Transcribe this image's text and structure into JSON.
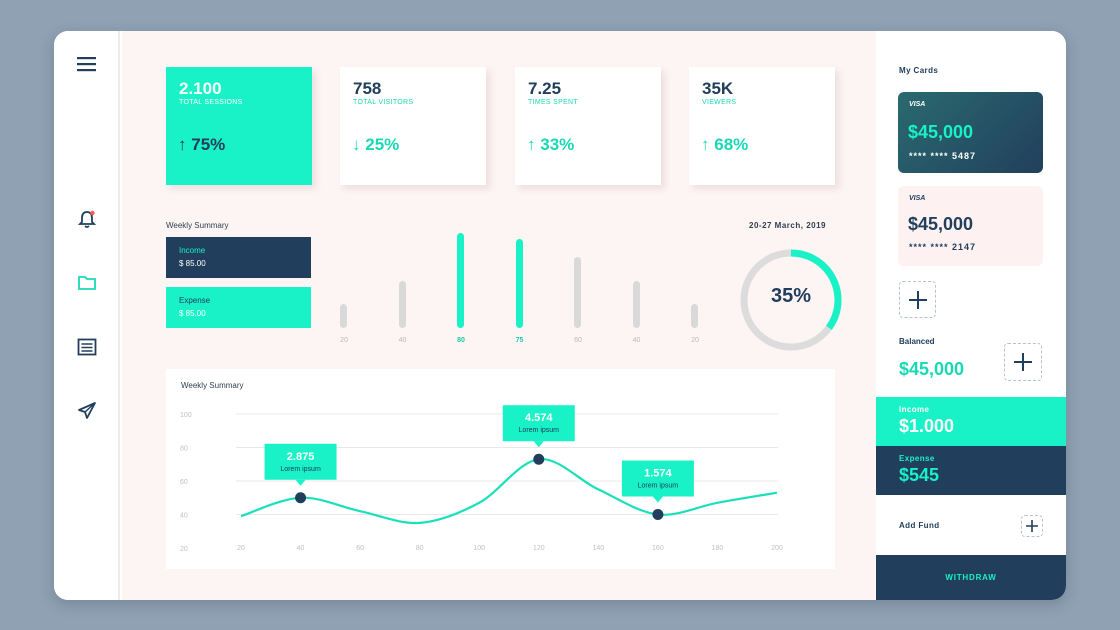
{
  "stats": [
    {
      "value": "2.100",
      "label": "TOTAL SESSIONS",
      "change": "75%",
      "arrow": "↑"
    },
    {
      "value": "758",
      "label": "TOTAL VISITORS",
      "change": "25%",
      "arrow": "↓"
    },
    {
      "value": "7.25",
      "label": "TIMES SPENT",
      "change": "33%",
      "arrow": "↑"
    },
    {
      "value": "35K",
      "label": "VIEWERS",
      "change": "68%",
      "arrow": "↑"
    }
  ],
  "weekly_summary": {
    "title": "Weekly Summary",
    "income_label": "Income",
    "income_value": "$ 85.00",
    "expense_label": "Expense",
    "expense_value": "$ 85.00"
  },
  "date_range": "20-27 March, 2019",
  "bars": [
    {
      "label": "20",
      "value": 20,
      "highlight": false
    },
    {
      "label": "40",
      "value": 40,
      "highlight": false
    },
    {
      "label": "80",
      "value": 80,
      "highlight": true
    },
    {
      "label": "75",
      "value": 75,
      "highlight": true
    },
    {
      "label": "60",
      "value": 60,
      "highlight": false
    },
    {
      "label": "40",
      "value": 40,
      "highlight": false
    },
    {
      "label": "20",
      "value": 20,
      "highlight": false
    }
  ],
  "donut": {
    "label": "35%",
    "fraction": 0.35
  },
  "chart_data": {
    "type": "line",
    "title": "Weekly Summary",
    "x_ticks": [
      "20",
      "40",
      "60",
      "80",
      "100",
      "120",
      "140",
      "160",
      "180",
      "200"
    ],
    "y_ticks": [
      "100",
      "80",
      "60",
      "40",
      "20"
    ],
    "ylim": [
      20,
      100
    ],
    "xlim": [
      20,
      200
    ],
    "points": [
      {
        "x": 20,
        "y": 39
      },
      {
        "x": 40,
        "y": 50
      },
      {
        "x": 60,
        "y": 42
      },
      {
        "x": 80,
        "y": 35
      },
      {
        "x": 100,
        "y": 47
      },
      {
        "x": 120,
        "y": 73
      },
      {
        "x": 140,
        "y": 55
      },
      {
        "x": 160,
        "y": 40
      },
      {
        "x": 180,
        "y": 47
      },
      {
        "x": 200,
        "y": 53
      }
    ],
    "markers": [
      {
        "x": 40,
        "y": 50,
        "value": "2.875",
        "text": "Lorem ipsum"
      },
      {
        "x": 120,
        "y": 73,
        "value": "4.574",
        "text": "Lorem ipsum"
      },
      {
        "x": 160,
        "y": 40,
        "value": "1.574",
        "text": "Lorem ipsum"
      }
    ],
    "grid": true,
    "series_color": "#19e0b9"
  },
  "right_panel": {
    "my_cards_title": "My Cards",
    "cards": [
      {
        "brand": "VISA",
        "amount": "$45,000",
        "number": "**** **** 5487",
        "dark": true
      },
      {
        "brand": "VISA",
        "amount": "$45,000",
        "number": "**** **** 2147",
        "dark": false
      }
    ],
    "balanced_label": "Balanced",
    "balanced_value": "$45,000",
    "income_label": "Income",
    "income_value": "$1.000",
    "expense_label": "Expense",
    "expense_value": "$545",
    "add_fund_label": "Add Fund",
    "withdraw_label": "WITHDRAW"
  },
  "colors": {
    "accent": "#19f1c6",
    "navy": "#213f5c",
    "bar_gray": "#d9d9d9",
    "main_bg": "#fdf4f4"
  },
  "icons": [
    "menu-icon",
    "bell-icon",
    "folder-icon",
    "list-icon",
    "send-icon",
    "plus-icon"
  ]
}
